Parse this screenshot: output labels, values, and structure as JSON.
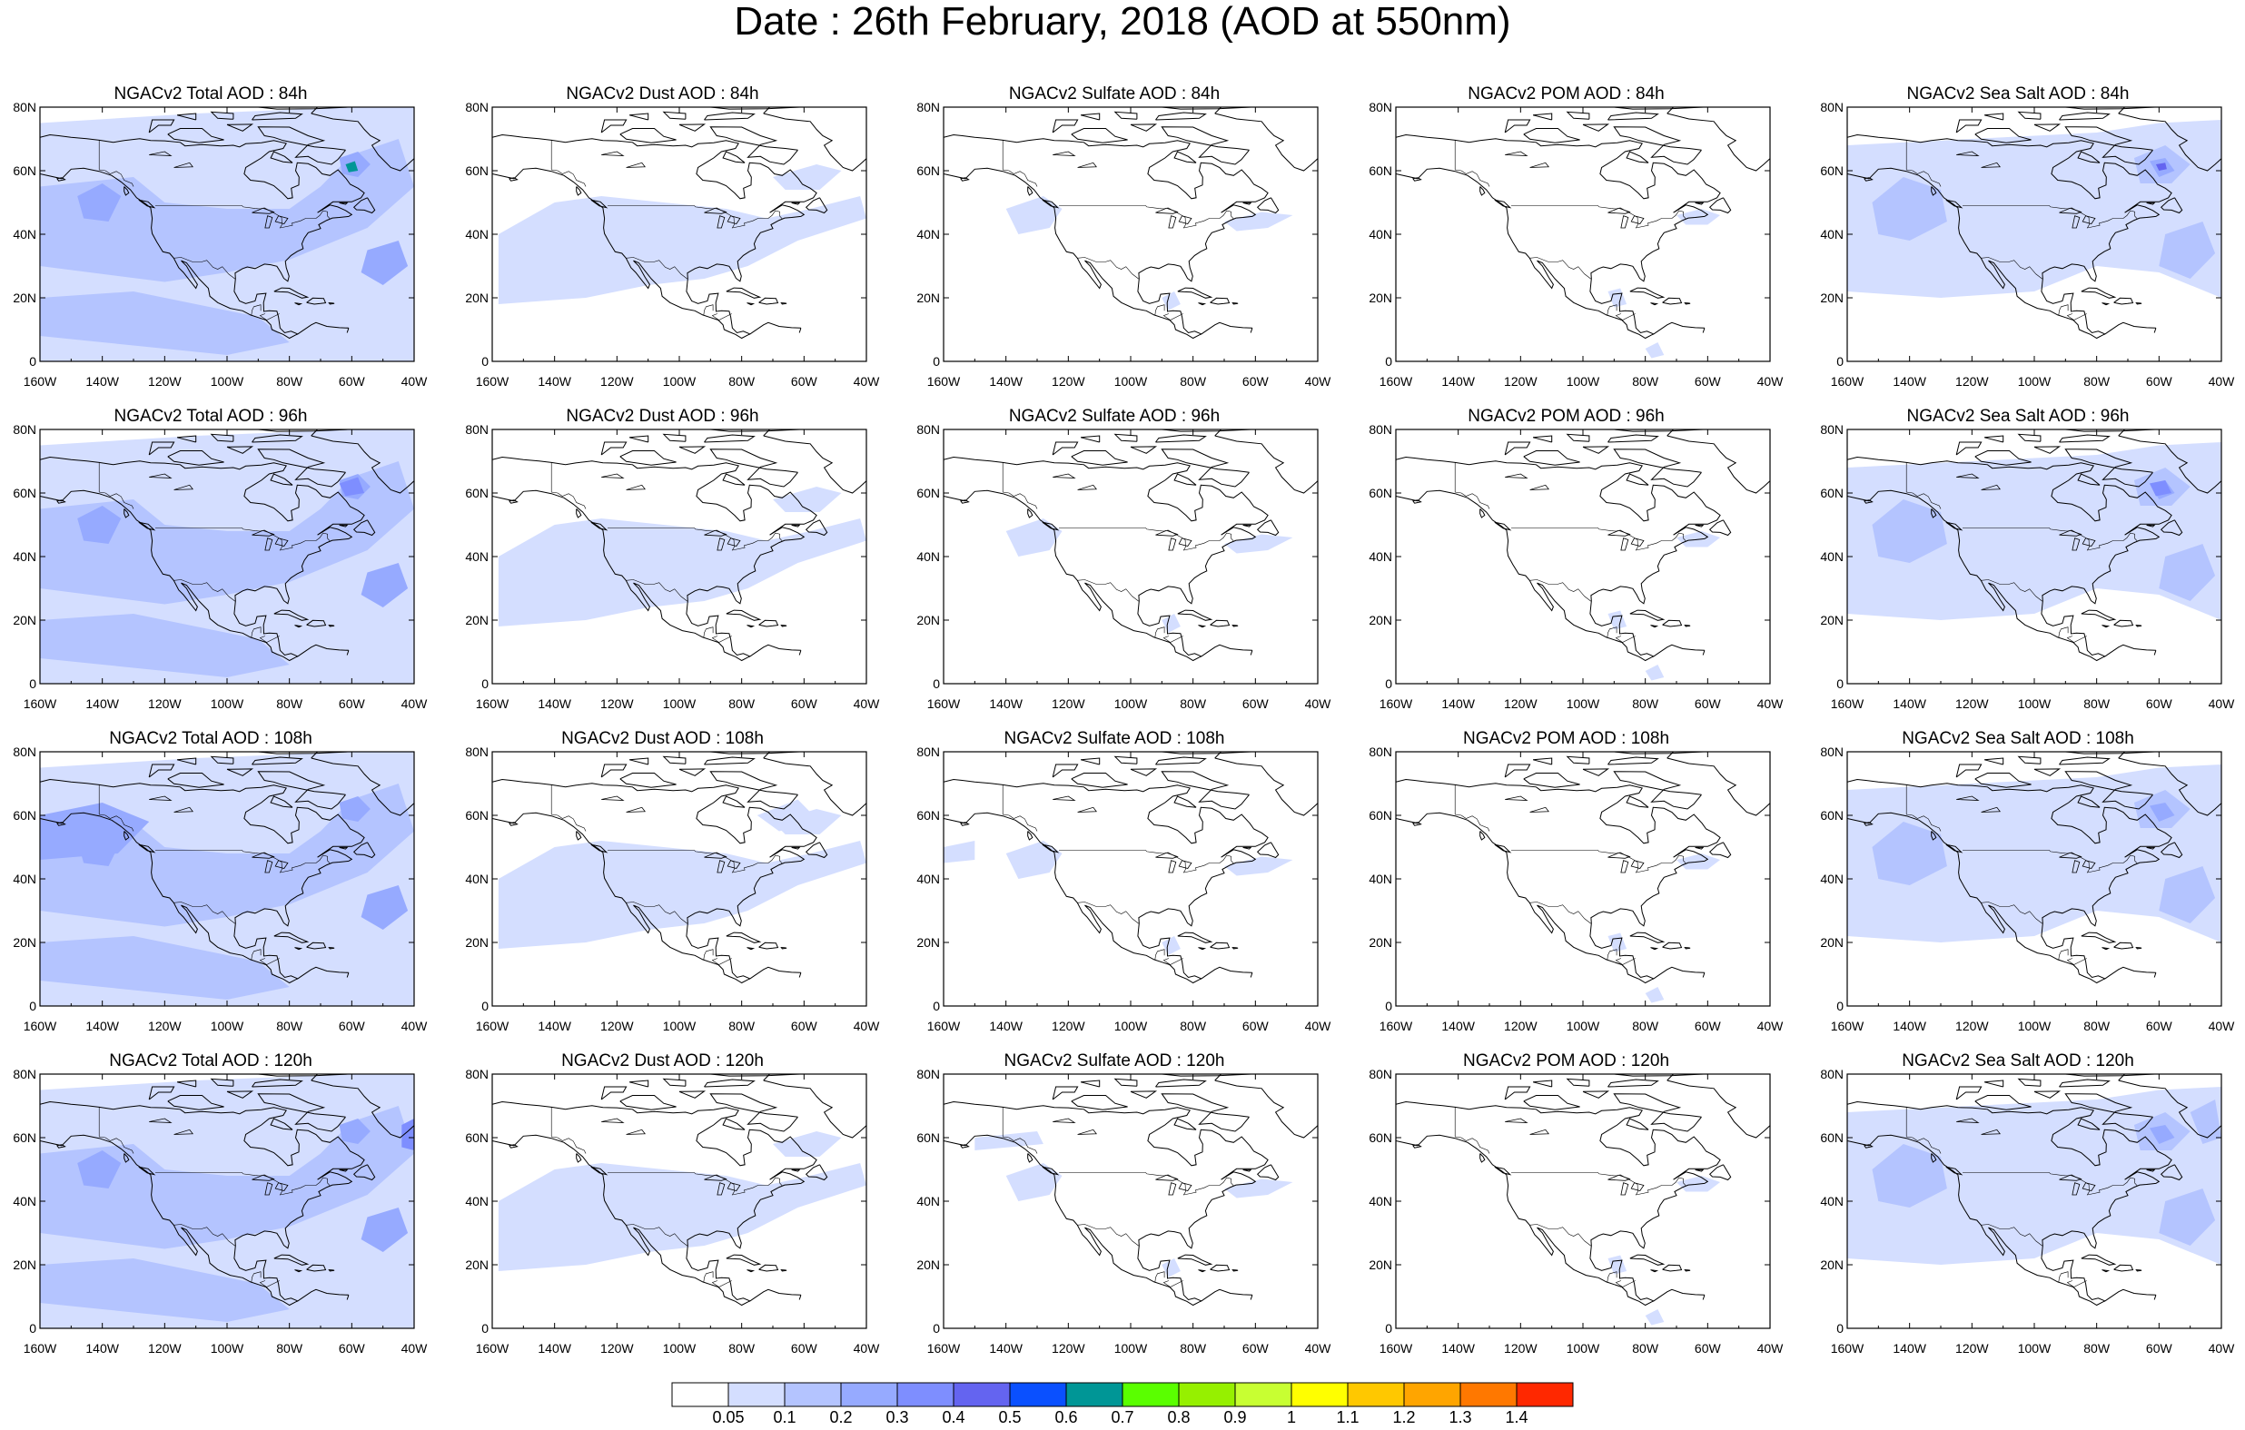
{
  "title": "Date : 26th February, 2018 (AOD at 550nm)",
  "lat_labels": [
    "0",
    "20N",
    "40N",
    "60N",
    "80N"
  ],
  "lon_labels": [
    "160W",
    "140W",
    "120W",
    "100W",
    "80W",
    "60W",
    "40W"
  ],
  "species": [
    "total",
    "dust",
    "sulfate",
    "pom",
    "seasalt"
  ],
  "forecast_hours": [
    "84h",
    "96h",
    "108h",
    "120h"
  ],
  "panels": [
    {
      "title": "NGACv2 Total AOD : 84h",
      "species": "total",
      "row": 0
    },
    {
      "title": "NGACv2 Dust AOD : 84h",
      "species": "dust",
      "row": 0
    },
    {
      "title": "NGACv2 Sulfate AOD : 84h",
      "species": "sulfate",
      "row": 0
    },
    {
      "title": "NGACv2 POM AOD : 84h",
      "species": "pom",
      "row": 0
    },
    {
      "title": "NGACv2 Sea Salt AOD : 84h",
      "species": "seasalt",
      "row": 0
    },
    {
      "title": "NGACv2 Total AOD : 96h",
      "species": "total",
      "row": 1
    },
    {
      "title": "NGACv2 Dust AOD : 96h",
      "species": "dust",
      "row": 1
    },
    {
      "title": "NGACv2 Sulfate AOD : 96h",
      "species": "sulfate",
      "row": 1
    },
    {
      "title": "NGACv2 POM AOD : 96h",
      "species": "pom",
      "row": 1
    },
    {
      "title": "NGACv2 Sea Salt AOD : 96h",
      "species": "seasalt",
      "row": 1
    },
    {
      "title": "NGACv2 Total AOD : 108h",
      "species": "total",
      "row": 2
    },
    {
      "title": "NGACv2 Dust AOD : 108h",
      "species": "dust",
      "row": 2
    },
    {
      "title": "NGACv2 Sulfate AOD : 108h",
      "species": "sulfate",
      "row": 2
    },
    {
      "title": "NGACv2 POM AOD : 108h",
      "species": "pom",
      "row": 2
    },
    {
      "title": "NGACv2 Sea Salt AOD : 108h",
      "species": "seasalt",
      "row": 2
    },
    {
      "title": "NGACv2 Total AOD : 120h",
      "species": "total",
      "row": 3
    },
    {
      "title": "NGACv2 Dust AOD : 120h",
      "species": "dust",
      "row": 3
    },
    {
      "title": "NGACv2 Sulfate AOD : 120h",
      "species": "sulfate",
      "row": 3
    },
    {
      "title": "NGACv2 POM AOD : 120h",
      "species": "pom",
      "row": 3
    },
    {
      "title": "NGACv2 Sea Salt  AOD : 120h",
      "species": "seasalt",
      "row": 3
    }
  ],
  "colorbar": {
    "labels": [
      "0.05",
      "0.1",
      "0.2",
      "0.3",
      "0.4",
      "0.5",
      "0.6",
      "0.7",
      "0.8",
      "0.9",
      "1",
      "1.1",
      "1.2",
      "1.3",
      "1.4"
    ],
    "colors": [
      "#ffffff",
      "#d4deff",
      "#b4c4ff",
      "#96aaff",
      "#7e8eff",
      "#6464f0",
      "#0a50ff",
      "#009696",
      "#5aff00",
      "#96f000",
      "#c8ff32",
      "#ffff00",
      "#ffc800",
      "#ffa500",
      "#ff7800",
      "#ff2800"
    ]
  },
  "palette": {
    "light": "#d4deff",
    "mid": "#b4c4ff",
    "strong": "#96aaff",
    "deep": "#7e8eff",
    "peak": "#6464f0",
    "green": "#009696"
  }
}
